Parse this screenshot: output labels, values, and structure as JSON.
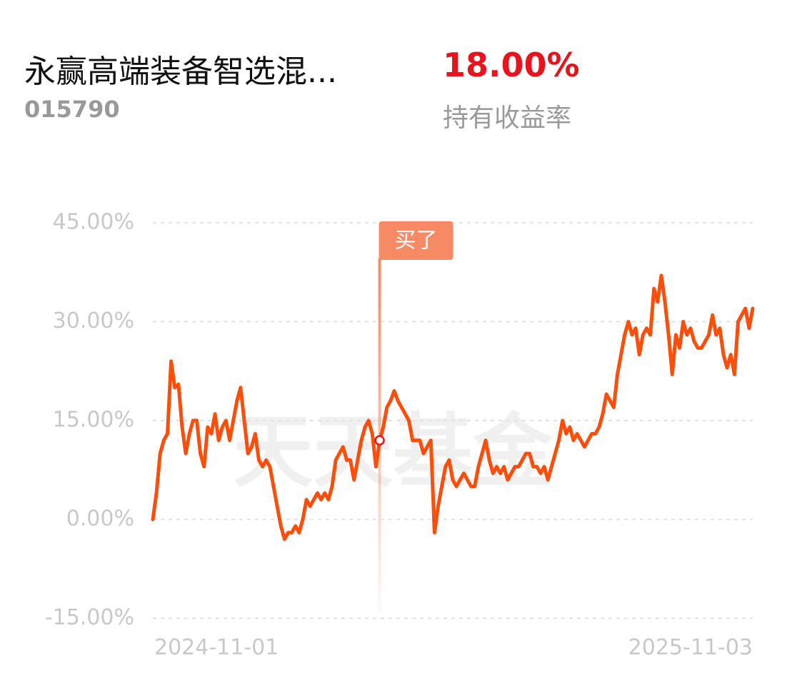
{
  "header": {
    "title": "永赢高端装备智选混...",
    "code": "015790",
    "return_value": "18.00%",
    "return_label": "持有收益率"
  },
  "chart_data": {
    "type": "line",
    "watermark": "天天基金",
    "color": "#ff4d0a",
    "grid": true,
    "ylim": [
      -15,
      45
    ],
    "yticks": [
      {
        "value": 45,
        "label": "45.00%"
      },
      {
        "value": 30,
        "label": "30.00%"
      },
      {
        "value": 15,
        "label": "15.00%"
      },
      {
        "value": 0,
        "label": "0.00%"
      },
      {
        "value": -15,
        "label": "-15.00%"
      }
    ],
    "annotations": [
      {
        "text": "买了",
        "x_index": 62
      }
    ],
    "categories": [
      "2024-11-01",
      null,
      null,
      null,
      null,
      null,
      null,
      null,
      null,
      null,
      null,
      null,
      null,
      null,
      null,
      null,
      null,
      null,
      null,
      null,
      null,
      null,
      null,
      null,
      null,
      null,
      null,
      null,
      null,
      null,
      null,
      null,
      null,
      null,
      null,
      null,
      null,
      null,
      null,
      null,
      null,
      null,
      null,
      null,
      null,
      null,
      null,
      null,
      null,
      null,
      null,
      null,
      null,
      null,
      null,
      null,
      null,
      null,
      null,
      null,
      null,
      null,
      null,
      null,
      null,
      null,
      null,
      null,
      null,
      null,
      null,
      null,
      null,
      null,
      null,
      null,
      null,
      null,
      null,
      null,
      null,
      null,
      null,
      null,
      null,
      null,
      null,
      null,
      null,
      null,
      null,
      null,
      null,
      null,
      null,
      null,
      null,
      null,
      null,
      null,
      null,
      null,
      null,
      null,
      null,
      null,
      null,
      null,
      null,
      null,
      null,
      null,
      null,
      null,
      null,
      null,
      null,
      null,
      null,
      null,
      null,
      null,
      null,
      null,
      null,
      null,
      null,
      null,
      null,
      null,
      null,
      null,
      null,
      null,
      null,
      null,
      null,
      null,
      null,
      null,
      null,
      null,
      null,
      null,
      null,
      null,
      null,
      null,
      null,
      null,
      null,
      null,
      null,
      null,
      null,
      null,
      null,
      null,
      null,
      null,
      null,
      null,
      null,
      null,
      "2025-11-03"
    ],
    "values": [
      0,
      4,
      10,
      12,
      13,
      24,
      20,
      20.5,
      14,
      10,
      13,
      15,
      15,
      10,
      8,
      14,
      13,
      16,
      12,
      14,
      15,
      12,
      15,
      18,
      20,
      15,
      10,
      11,
      13,
      9,
      8,
      9,
      8,
      5,
      2,
      -1,
      -3,
      -2,
      -2,
      -1,
      -2,
      0,
      3,
      2,
      3,
      4,
      3,
      4,
      3,
      5,
      9,
      10,
      11,
      9,
      9,
      6,
      9,
      12,
      14,
      15,
      13,
      8,
      12,
      14,
      17,
      18,
      19.5,
      18,
      17,
      16,
      15,
      12,
      12,
      12,
      10,
      11,
      12,
      -2,
      2,
      5,
      8,
      9,
      6,
      5,
      6,
      7,
      6,
      5,
      5,
      8,
      10,
      12,
      9,
      7,
      8,
      7,
      8,
      6,
      7,
      8,
      8,
      9,
      10,
      10,
      8,
      8,
      7,
      8,
      6,
      8,
      10,
      12,
      15,
      13,
      14,
      12,
      13,
      12,
      11,
      12,
      13,
      13,
      14,
      16,
      19,
      18,
      17,
      22,
      25,
      28,
      30,
      28,
      29,
      25,
      28,
      29,
      28,
      35,
      33,
      37,
      33,
      28,
      22,
      28,
      26,
      30,
      28,
      29,
      27,
      26,
      26,
      27,
      28,
      31,
      28,
      29,
      25,
      23,
      25,
      22,
      30,
      31,
      32,
      29,
      32
    ]
  }
}
